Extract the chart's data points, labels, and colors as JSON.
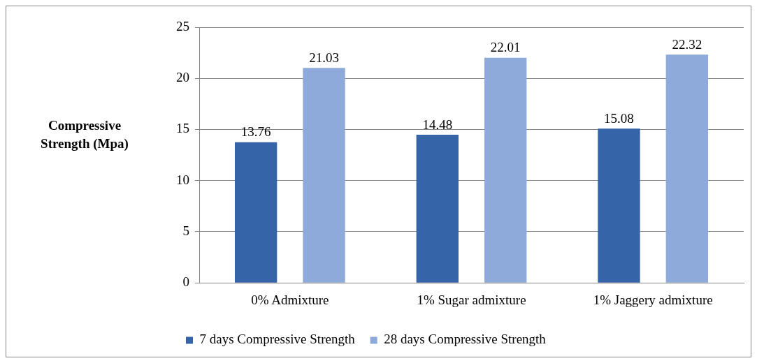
{
  "chart_data": {
    "type": "bar",
    "ylabel": "Compressive Strength (Mpa)",
    "categories": [
      "0% Admixture",
      "1% Sugar admixture",
      "1% Jaggery admixture"
    ],
    "series": [
      {
        "name": "7 days Compressive Strength",
        "color": "#3565a8",
        "values": [
          13.76,
          14.48,
          15.08
        ]
      },
      {
        "name": "28 days Compressive Strength",
        "color": "#8eaadb",
        "values": [
          21.03,
          22.01,
          22.32
        ]
      }
    ],
    "ylim": [
      0,
      25
    ],
    "yticks": [
      0,
      5,
      10,
      15,
      20,
      25
    ],
    "grid": "y",
    "legend": "bottom",
    "data_labels": true
  }
}
